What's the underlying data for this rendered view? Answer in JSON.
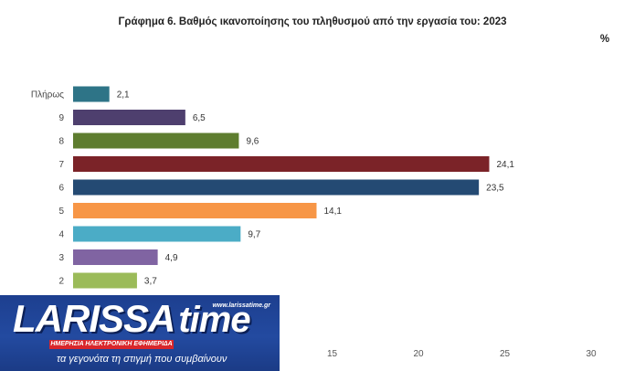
{
  "chart_data": {
    "type": "bar",
    "orientation": "horizontal",
    "title": "Γράφημα 6. Βαθμός ικανοποίησης του πληθυσμού  από την εργασία του: 2023",
    "unit_label": "%",
    "categories": [
      "Πλήρως",
      "9",
      "8",
      "7",
      "6",
      "5",
      "4",
      "3",
      "2"
    ],
    "values": [
      2.1,
      6.5,
      9.6,
      24.1,
      23.5,
      14.1,
      9.7,
      4.9,
      3.7
    ],
    "value_labels": [
      "2,1",
      "6,5",
      "9,6",
      "24,1",
      "23,5",
      "14,1",
      "9,7",
      "4,9",
      "3,7"
    ],
    "colors": [
      "#2e7487",
      "#4e3f6e",
      "#5e7d2f",
      "#7b2328",
      "#244a73",
      "#f79646",
      "#4bacc6",
      "#8064a2",
      "#9bbb59"
    ],
    "xlim": [
      0,
      30
    ],
    "xticks": [
      "15",
      "20",
      "25",
      "30"
    ],
    "xtick_values": [
      15,
      20,
      25,
      30
    ],
    "grid": false,
    "legend": "none"
  },
  "logo": {
    "brand_left": "LARISSA",
    "brand_right": "time",
    "url": "www.larissatime.gr",
    "banner": "ΗΜΕΡΗΣΙΑ ΗΛΕΚΤΡΟΝΙΚΗ ΕΦΗΜΕΡΙΔΑ",
    "tagline": "τα γεγονότα τη στιγμή που συμβαίνουν"
  }
}
